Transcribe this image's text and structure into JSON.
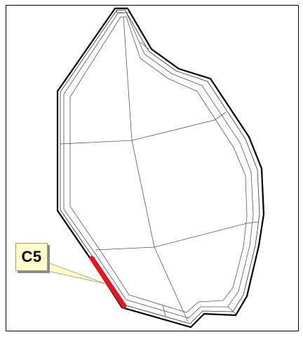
{
  "callout": {
    "label": "C5"
  },
  "colors": {
    "background": "#ffffff",
    "outline": "#000000",
    "mesh_line": "#555555",
    "highlight_edge": "#e8141e",
    "callout_fill": "#ffffcc"
  },
  "highlighted_edge": "C5"
}
